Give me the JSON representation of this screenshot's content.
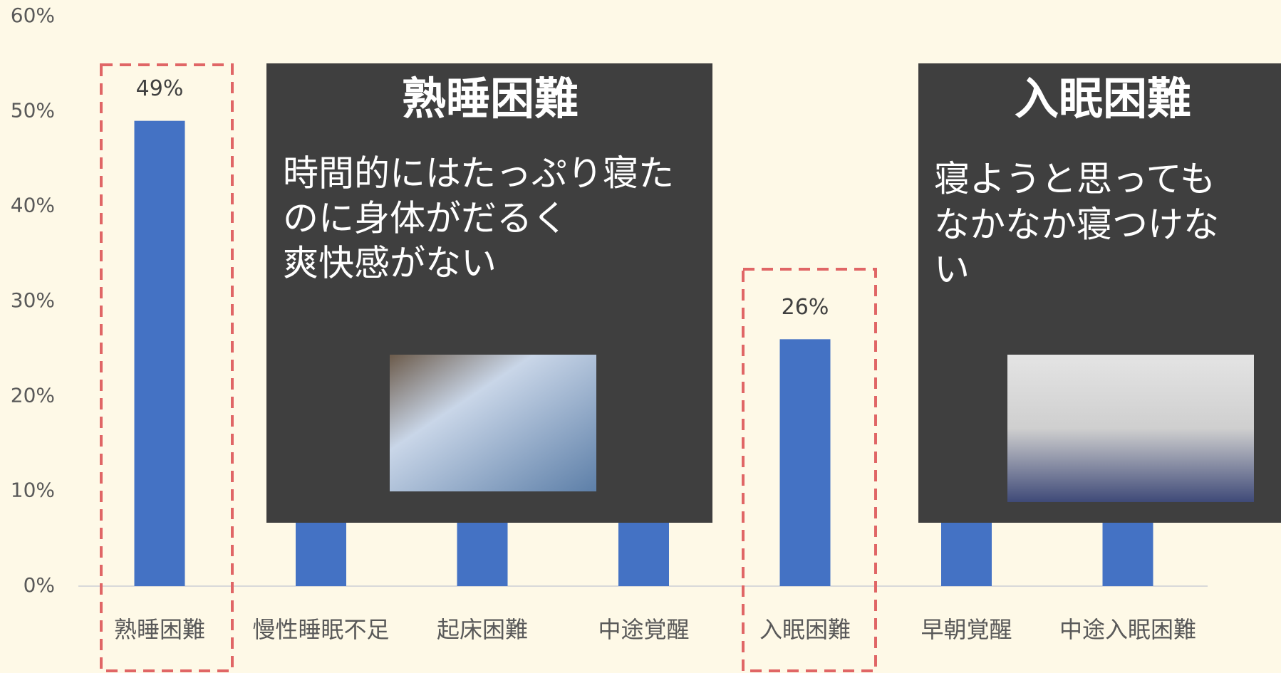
{
  "chart_data": {
    "type": "bar",
    "categories": [
      "熟睡困難",
      "慢性睡眠不足",
      "起床困難",
      "中途覚醒",
      "入眠困難",
      "早朝覚醒",
      "中途入眠困難"
    ],
    "values": [
      49,
      25,
      22,
      20,
      26,
      15,
      12
    ],
    "value_labels": [
      "49%",
      null,
      null,
      null,
      "26%",
      null,
      null
    ],
    "color": "#4472c4",
    "ylim": [
      0,
      60
    ],
    "yticks": [
      {
        "value": 0,
        "label": "0%"
      },
      {
        "value": 10,
        "label": "10%"
      },
      {
        "value": 20,
        "label": "20%"
      },
      {
        "value": 30,
        "label": "30%"
      },
      {
        "value": 40,
        "label": "40%"
      },
      {
        "value": 50,
        "label": "50%"
      },
      {
        "value": 60,
        "label": "60%"
      }
    ],
    "grid": false,
    "annotations": [
      {
        "title": "熟睡困難",
        "lines": [
          "時間的にはたっぷり寝た",
          "のに身体がだるく",
          "爽快感がない"
        ]
      },
      {
        "title": "入眠困難",
        "lines": [
          "寝ようと思っても",
          "なかなか寝つけな",
          "い"
        ]
      }
    ]
  }
}
